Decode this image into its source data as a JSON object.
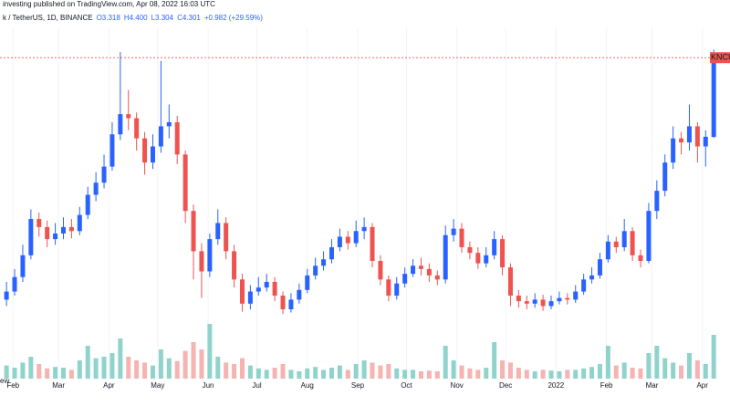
{
  "chart_data": {
    "type": "candlestick",
    "header": {
      "published": "investing published on TradingView.com, Apr 08, 2022 16:03 UTC",
      "symbol": "k / TetherUS, 1D, BINANCE",
      "ohlc": [
        "O3.318",
        "H4.400",
        "L3.304",
        "C4.301",
        "+0.982 (+29.59%)"
      ]
    },
    "footer": "ew",
    "price_label": "KNCUSD",
    "colors": {
      "up": "#2962ff",
      "down": "#ef5350",
      "volume_up": "#8fd3cc",
      "volume_down": "#f5b3b1",
      "price_line": "#ef5350"
    },
    "x": [
      27,
      32,
      37,
      42,
      47,
      52,
      57,
      62,
      67,
      72,
      77,
      82,
      87,
      92,
      97,
      102,
      107,
      112,
      117,
      122,
      127,
      132,
      137,
      142,
      147,
      152,
      157,
      162,
      167,
      172,
      177,
      182,
      187,
      192,
      197,
      202,
      207,
      212,
      217,
      222,
      227,
      232,
      237,
      242,
      247,
      252,
      257,
      262,
      267,
      272,
      277,
      282,
      287,
      292,
      297,
      302,
      307,
      312,
      317,
      322,
      327,
      332,
      337,
      342,
      347,
      352,
      357,
      362,
      367,
      372,
      377,
      382,
      387,
      392,
      397,
      402,
      407,
      412,
      417,
      422,
      427,
      432,
      437,
      442,
      447,
      452,
      457,
      462
    ],
    "open": [
      1.3,
      1.4,
      1.58,
      1.85,
      2.3,
      2.2,
      2.05,
      2.12,
      2.2,
      2.15,
      2.35,
      2.6,
      2.75,
      2.95,
      3.35,
      3.6,
      3.55,
      3.3,
      3.0,
      3.2,
      3.45,
      3.5,
      3.1,
      2.4,
      1.9,
      1.65,
      2.05,
      2.25,
      1.9,
      1.55,
      1.25,
      1.4,
      1.45,
      1.52,
      1.35,
      1.18,
      1.3,
      1.42,
      1.6,
      1.72,
      1.8,
      1.95,
      2.08,
      2.0,
      2.15,
      2.2,
      1.78,
      1.55,
      1.35,
      1.5,
      1.62,
      1.72,
      1.68,
      1.6,
      1.55,
      2.1,
      2.18,
      1.95,
      1.88,
      1.75,
      1.85,
      2.05,
      1.7,
      1.35,
      1.28,
      1.25,
      1.3,
      1.22,
      1.28,
      1.32,
      1.3,
      1.4,
      1.55,
      1.6,
      1.8,
      2.02,
      1.95,
      2.15,
      1.85,
      1.78,
      2.4,
      2.65,
      3.0,
      3.3,
      3.25,
      3.45,
      3.2,
      3.318
    ],
    "high": [
      1.52,
      1.68,
      1.98,
      2.42,
      2.38,
      2.28,
      2.25,
      2.32,
      2.3,
      2.45,
      2.7,
      2.88,
      3.1,
      3.5,
      4.37,
      3.9,
      3.62,
      3.38,
      3.35,
      4.26,
      3.72,
      3.58,
      3.15,
      2.48,
      2.0,
      2.12,
      2.42,
      2.32,
      1.98,
      1.62,
      1.48,
      1.58,
      1.62,
      1.58,
      1.4,
      1.38,
      1.5,
      1.68,
      1.82,
      1.9,
      2.05,
      2.18,
      2.15,
      2.28,
      2.32,
      2.25,
      1.85,
      1.6,
      1.58,
      1.7,
      1.8,
      1.82,
      1.75,
      1.66,
      2.22,
      2.3,
      2.25,
      2.02,
      1.95,
      1.95,
      2.15,
      2.1,
      1.75,
      1.42,
      1.35,
      1.38,
      1.36,
      1.35,
      1.4,
      1.38,
      1.48,
      1.62,
      1.7,
      1.88,
      2.1,
      2.08,
      2.3,
      2.2,
      1.92,
      2.5,
      2.78,
      3.1,
      3.45,
      3.38,
      3.72,
      3.5,
      3.4,
      4.4
    ],
    "low": [
      1.22,
      1.35,
      1.52,
      1.8,
      2.08,
      1.95,
      1.98,
      2.05,
      2.06,
      2.1,
      2.3,
      2.52,
      2.68,
      2.9,
      3.28,
      3.4,
      3.15,
      2.85,
      2.92,
      3.12,
      3.3,
      2.98,
      2.25,
      1.55,
      1.32,
      1.58,
      1.98,
      1.8,
      1.45,
      1.15,
      1.18,
      1.35,
      1.4,
      1.28,
      1.12,
      1.14,
      1.25,
      1.38,
      1.55,
      1.66,
      1.75,
      1.9,
      1.92,
      1.95,
      2.05,
      1.7,
      1.48,
      1.28,
      1.3,
      1.45,
      1.58,
      1.6,
      1.52,
      1.48,
      1.5,
      2.02,
      1.88,
      1.8,
      1.68,
      1.7,
      1.8,
      1.6,
      1.22,
      1.2,
      1.18,
      1.2,
      1.16,
      1.18,
      1.24,
      1.24,
      1.26,
      1.36,
      1.5,
      1.56,
      1.76,
      1.88,
      1.9,
      1.78,
      1.7,
      1.75,
      2.3,
      2.58,
      2.92,
      3.1,
      3.15,
      3.0,
      2.95,
      3.304
    ],
    "close": [
      1.4,
      1.58,
      1.85,
      2.3,
      2.2,
      2.05,
      2.12,
      2.2,
      2.15,
      2.35,
      2.6,
      2.75,
      2.95,
      3.35,
      3.6,
      3.55,
      3.3,
      3.0,
      3.2,
      3.45,
      3.5,
      3.1,
      2.4,
      1.9,
      1.65,
      2.05,
      2.25,
      1.9,
      1.55,
      1.25,
      1.4,
      1.45,
      1.52,
      1.35,
      1.18,
      1.3,
      1.42,
      1.6,
      1.72,
      1.8,
      1.95,
      2.08,
      2.0,
      2.15,
      2.2,
      1.78,
      1.55,
      1.35,
      1.5,
      1.62,
      1.72,
      1.68,
      1.6,
      1.55,
      2.1,
      2.18,
      1.95,
      1.88,
      1.75,
      1.85,
      2.05,
      1.7,
      1.35,
      1.28,
      1.25,
      1.3,
      1.22,
      1.28,
      1.32,
      1.3,
      1.4,
      1.55,
      1.6,
      1.8,
      2.02,
      1.95,
      2.15,
      1.85,
      1.78,
      2.4,
      2.65,
      3.0,
      3.3,
      3.25,
      3.45,
      3.2,
      3.32,
      4.301
    ],
    "volume": [
      18,
      15,
      22,
      30,
      20,
      14,
      16,
      15,
      12,
      25,
      45,
      28,
      30,
      35,
      55,
      30,
      25,
      22,
      18,
      40,
      28,
      24,
      38,
      50,
      40,
      75,
      30,
      22,
      20,
      28,
      18,
      14,
      12,
      15,
      20,
      12,
      10,
      14,
      16,
      12,
      15,
      18,
      12,
      20,
      25,
      22,
      18,
      20,
      14,
      12,
      12,
      10,
      11,
      10,
      45,
      25,
      18,
      14,
      12,
      15,
      50,
      25,
      22,
      15,
      12,
      10,
      12,
      11,
      10,
      12,
      12,
      14,
      16,
      20,
      45,
      18,
      22,
      15,
      14,
      35,
      45,
      28,
      22,
      18,
      35,
      25,
      20,
      60
    ],
    "xlim": [
      23,
      472
    ],
    "ylim": [
      0.32,
      4.79
    ],
    "vlim": [
      0,
      100
    ],
    "xticks": [
      {
        "value": 31,
        "label": "Feb"
      },
      {
        "value": 59,
        "label": "Mar"
      },
      {
        "value": 90,
        "label": "Apr"
      },
      {
        "value": 120,
        "label": "May"
      },
      {
        "value": 151,
        "label": "Jun"
      },
      {
        "value": 181,
        "label": "Jul"
      },
      {
        "value": 212,
        "label": "Aug"
      },
      {
        "value": 243,
        "label": "Sep"
      },
      {
        "value": 273,
        "label": "Oct"
      },
      {
        "value": 304,
        "label": "Nov"
      },
      {
        "value": 334,
        "label": "Dec"
      },
      {
        "value": 365,
        "label": "2022"
      },
      {
        "value": 396,
        "label": "Feb"
      },
      {
        "value": 424,
        "label": "Mar"
      },
      {
        "value": 455,
        "label": "Apr"
      }
    ]
  }
}
